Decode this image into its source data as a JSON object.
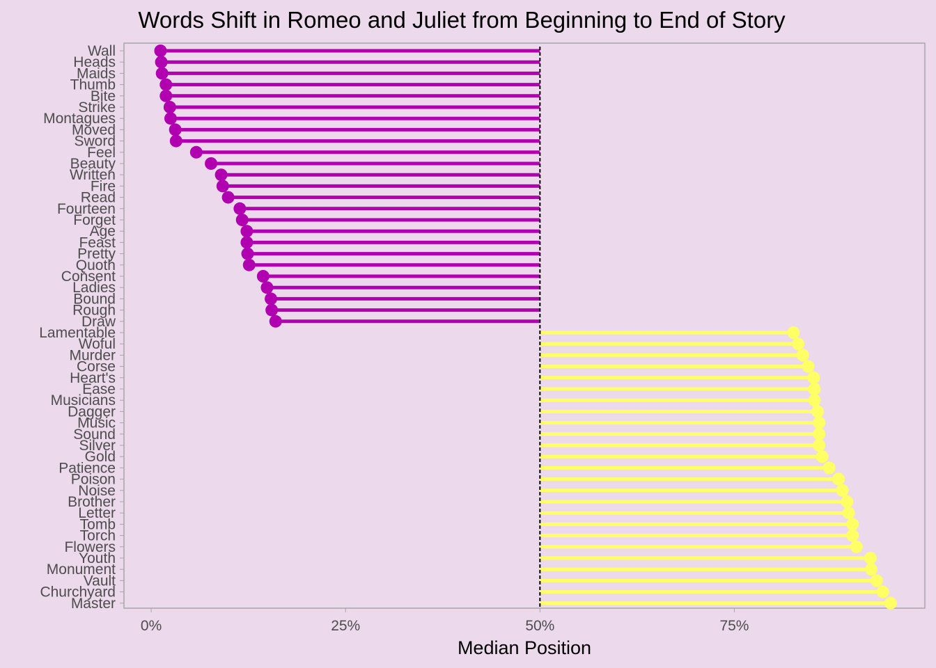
{
  "chart_data": {
    "type": "lollipop",
    "title": "Words Shift in Romeo and Juliet from Beginning to End of Story",
    "xlabel": "Median Position",
    "ylabel": "",
    "xlim": [
      -0.035,
      0.995
    ],
    "xticks": [
      0,
      0.25,
      0.5,
      0.75
    ],
    "xtick_labels": [
      "0%",
      "25%",
      "50%",
      "75%"
    ],
    "reference_line": 0.5,
    "grid": false,
    "legend": "none",
    "colors": {
      "background": "#ecd9ec",
      "beginning": "#b000b0",
      "end": "#ffff66",
      "frame": "#a6a6a6"
    },
    "words": [
      "Wall",
      "Heads",
      "Maids",
      "Thumb",
      "Bite",
      "Strike",
      "Montagues",
      "Moved",
      "Sword",
      "Feel",
      "Beauty",
      "Written",
      "Fire",
      "Read",
      "Fourteen",
      "Forget",
      "Age",
      "Feast",
      "Pretty",
      "Quoth",
      "Consent",
      "Ladies",
      "Bound",
      "Rough",
      "Draw",
      "Lamentable",
      "Woful",
      "Murder",
      "Corse",
      "Heart's",
      "Ease",
      "Musicians",
      "Dagger",
      "Music",
      "Sound",
      "Silver",
      "Gold",
      "Patience",
      "Poison",
      "Noise",
      "Brother",
      "Letter",
      "Tomb",
      "Torch",
      "Flowers",
      "Youth",
      "Monument",
      "Vault",
      "Churchyard",
      "Master"
    ],
    "values": [
      0.012,
      0.013,
      0.014,
      0.019,
      0.019,
      0.024,
      0.025,
      0.031,
      0.032,
      0.058,
      0.077,
      0.09,
      0.092,
      0.099,
      0.114,
      0.117,
      0.123,
      0.123,
      0.124,
      0.126,
      0.144,
      0.149,
      0.154,
      0.155,
      0.16,
      0.826,
      0.832,
      0.838,
      0.845,
      0.852,
      0.853,
      0.853,
      0.857,
      0.859,
      0.859,
      0.859,
      0.863,
      0.872,
      0.884,
      0.889,
      0.895,
      0.897,
      0.902,
      0.902,
      0.907,
      0.925,
      0.926,
      0.933,
      0.941,
      0.951
    ]
  }
}
